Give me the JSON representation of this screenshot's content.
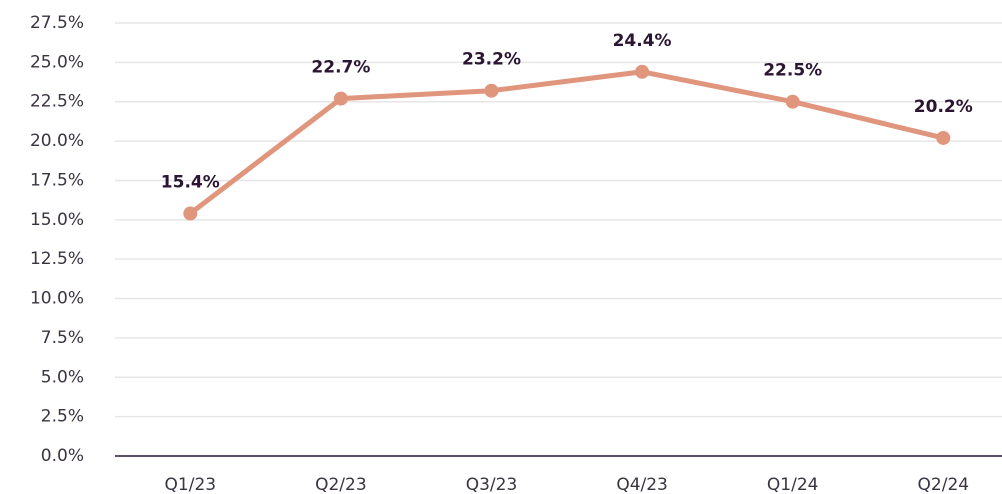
{
  "chart_data": {
    "type": "line",
    "categories": [
      "Q1/23",
      "Q2/23",
      "Q3/23",
      "Q4/23",
      "Q1/24",
      "Q2/24"
    ],
    "series": [
      {
        "color": "#e0957d",
        "values": [
          15.4,
          22.7,
          23.2,
          24.4,
          22.5,
          20.2
        ],
        "value_labels": [
          "15.4%",
          "22.7%",
          "23.2%",
          "24.4%",
          "22.5%",
          "20.2%"
        ]
      }
    ],
    "ylim": [
      0,
      27.5
    ],
    "yticks": [
      {
        "value": 0,
        "label": "0.0%"
      },
      {
        "value": 2.5,
        "label": "2.5%"
      },
      {
        "value": 5,
        "label": "5.0%"
      },
      {
        "value": 7.5,
        "label": "7.5%"
      },
      {
        "value": 10,
        "label": "10.0%"
      },
      {
        "value": 12.5,
        "label": "12.5%"
      },
      {
        "value": 15,
        "label": "15.0%"
      },
      {
        "value": 17.5,
        "label": "17.5%"
      },
      {
        "value": 20,
        "label": "20.0%"
      },
      {
        "value": 22.5,
        "label": "22.5%"
      },
      {
        "value": 25,
        "label": "25.0%"
      },
      {
        "value": 27.5,
        "label": "27.5%"
      }
    ],
    "grid": true
  }
}
